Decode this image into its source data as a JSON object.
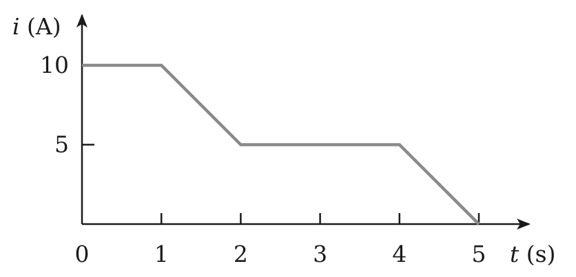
{
  "chart_data": {
    "type": "line",
    "title": "",
    "xlabel": {
      "var": "t",
      "unit": " (s)"
    },
    "ylabel": {
      "var": "i",
      "unit": " (A)"
    },
    "xlim": [
      0,
      5
    ],
    "ylim": [
      0,
      10
    ],
    "x_ticks": [
      0,
      1,
      2,
      3,
      4,
      5
    ],
    "x_tick_labels": [
      "0",
      "1",
      "2",
      "3",
      "4",
      "5"
    ],
    "y_ticks": [
      5,
      10
    ],
    "y_tick_labels": [
      "5",
      "10"
    ],
    "grid": false,
    "series": [
      {
        "x": [
          0,
          1,
          2,
          4,
          5
        ],
        "y": [
          10,
          10,
          5,
          5,
          0
        ],
        "color": "#8a8a8a"
      }
    ],
    "axis_color": "#1a1a1a"
  }
}
